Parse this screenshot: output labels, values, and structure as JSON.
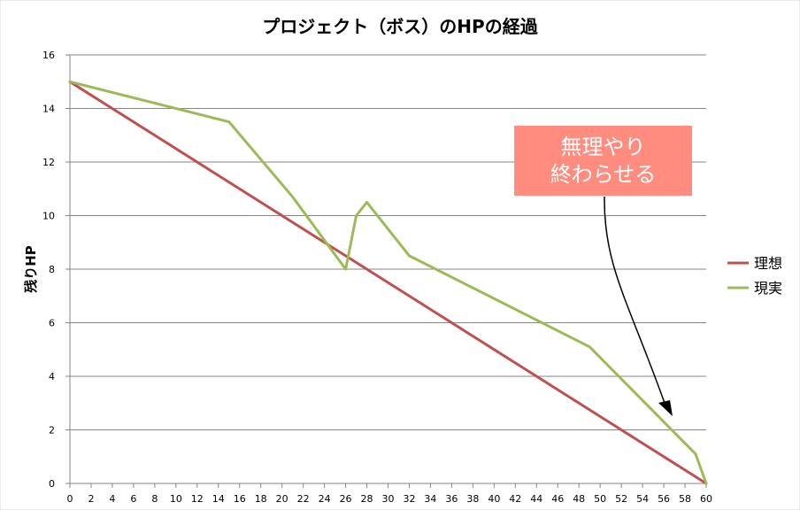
{
  "chart_data": {
    "type": "line",
    "title": "プロジェクト（ボス）のHPの経過",
    "xlabel": "",
    "ylabel": "残りHP",
    "xlim": [
      0,
      60
    ],
    "ylim": [
      0,
      16
    ],
    "x_ticks": [
      0,
      2,
      4,
      6,
      8,
      10,
      12,
      14,
      16,
      18,
      20,
      22,
      24,
      26,
      28,
      30,
      32,
      34,
      36,
      38,
      40,
      42,
      44,
      46,
      48,
      50,
      52,
      54,
      56,
      58,
      60
    ],
    "y_ticks": [
      0,
      2,
      4,
      6,
      8,
      10,
      12,
      14,
      16
    ],
    "grid": true,
    "legend_position": "right",
    "series": [
      {
        "name": "理想",
        "color": "#c0504d",
        "points": [
          [
            0,
            15
          ],
          [
            60,
            0
          ]
        ]
      },
      {
        "name": "現実",
        "color": "#9bbb59",
        "points": [
          [
            0,
            15
          ],
          [
            15,
            13.5
          ],
          [
            21,
            10.7
          ],
          [
            26,
            8
          ],
          [
            27,
            10
          ],
          [
            28,
            10.5
          ],
          [
            32,
            8.5
          ],
          [
            49,
            5.1
          ],
          [
            59,
            1.1
          ],
          [
            60,
            0
          ]
        ]
      }
    ],
    "annotation": {
      "line1": "無理やり",
      "line2": "終わらせる",
      "color": "#ff8c7e"
    }
  }
}
